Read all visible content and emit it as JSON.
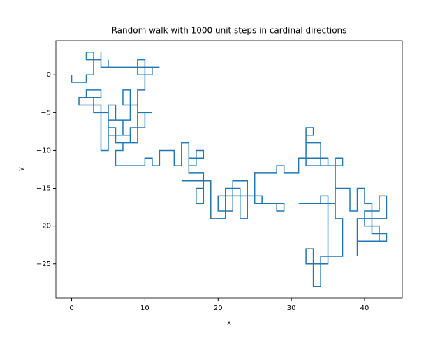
{
  "chart_data": {
    "type": "line",
    "title": "Random walk with 1000 unit steps in cardinal directions",
    "xlabel": "x",
    "ylabel": "y",
    "xlim": [
      -2.15,
      45.15
    ],
    "ylim": [
      -29.55,
      4.55
    ],
    "xticks": [
      0,
      10,
      20,
      30,
      40
    ],
    "yticks": [
      {
        "value": -25,
        "label": "−25"
      },
      {
        "value": -20,
        "label": "−20"
      },
      {
        "value": -15,
        "label": "−15"
      },
      {
        "value": -10,
        "label": "−10"
      },
      {
        "value": -5,
        "label": "−5"
      },
      0
    ],
    "series": [
      {
        "color": "#1f77b4",
        "x": [
          0,
          0,
          2,
          2,
          3,
          3,
          2,
          2,
          4,
          4,
          4,
          5,
          5,
          5,
          9,
          9,
          10,
          10,
          9,
          9,
          12,
          11,
          11,
          10,
          10,
          9,
          9,
          11,
          10,
          10,
          8,
          8,
          7,
          7,
          5,
          5,
          3,
          3,
          1,
          1,
          4,
          4,
          2,
          2,
          3,
          3,
          4,
          4,
          5,
          5,
          6,
          6,
          9,
          9,
          7,
          7,
          8,
          8,
          6,
          6,
          5,
          5,
          8,
          8,
          7,
          7,
          6,
          6,
          10,
          10,
          11,
          11,
          12,
          12,
          14,
          14,
          15,
          15,
          16,
          16,
          17,
          17,
          18,
          18,
          16,
          16,
          18,
          18,
          17,
          17,
          18,
          18,
          15,
          19,
          19,
          21,
          21,
          23,
          23,
          24,
          24,
          22,
          22,
          20,
          20,
          26,
          26,
          28,
          28,
          29,
          29,
          25,
          25,
          28,
          28,
          29,
          29,
          31,
          31,
          35,
          35,
          32,
          32,
          33,
          33,
          32,
          32,
          34,
          34,
          37,
          37,
          36,
          36,
          31,
          34,
          34,
          35,
          35,
          32,
          32,
          33,
          33,
          34,
          34,
          37,
          37,
          36,
          36,
          38,
          38,
          39,
          39,
          40,
          40,
          41,
          41,
          43,
          43,
          42,
          42,
          40,
          40,
          42,
          42,
          43,
          43,
          41,
          41,
          39,
          39,
          39,
          43
        ],
        "values": [
          0,
          -1,
          -1,
          0,
          0,
          3,
          3,
          2,
          2,
          3,
          1,
          1,
          2,
          1,
          1,
          0,
          0,
          2,
          2,
          1,
          1,
          1,
          0,
          0,
          -2,
          -2,
          -5,
          -5,
          -5,
          -7,
          -7,
          -8,
          -8,
          -6,
          -6,
          -5,
          -5,
          -4,
          -4,
          -3,
          -3,
          -2,
          -2,
          -3,
          -3,
          -4,
          -4,
          -10,
          -10,
          -7,
          -7,
          -9,
          -9,
          -4,
          -4,
          -2,
          -2,
          -6,
          -6,
          -4,
          -4,
          -8,
          -8,
          -9,
          -9,
          -10,
          -10,
          -12,
          -12,
          -11,
          -11,
          -12,
          -12,
          -10,
          -10,
          -12,
          -12,
          -9,
          -9,
          -12,
          -12,
          -10,
          -10,
          -11,
          -11,
          -13,
          -13,
          -15,
          -15,
          -17,
          -17,
          -14,
          -14,
          -14,
          -19,
          -19,
          -15,
          -15,
          -19,
          -19,
          -14,
          -14,
          -18,
          -18,
          -16,
          -16,
          -17,
          -17,
          -18,
          -18,
          -17,
          -17,
          -13,
          -13,
          -12,
          -12,
          -13,
          -13,
          -11,
          -11,
          -12,
          -12,
          -8,
          -8,
          -7,
          -7,
          -9,
          -9,
          -12,
          -12,
          -11,
          -11,
          -17,
          -17,
          -17,
          -16,
          -16,
          -25,
          -25,
          -23,
          -23,
          -28,
          -28,
          -24,
          -24,
          -19,
          -19,
          -15,
          -15,
          -18,
          -18,
          -15,
          -15,
          -17,
          -17,
          -19,
          -19,
          -16,
          -16,
          -18,
          -18,
          -20,
          -20,
          -22,
          -22,
          -21,
          -21,
          -19,
          -19,
          -24,
          -22,
          -22
        ]
      }
    ]
  }
}
